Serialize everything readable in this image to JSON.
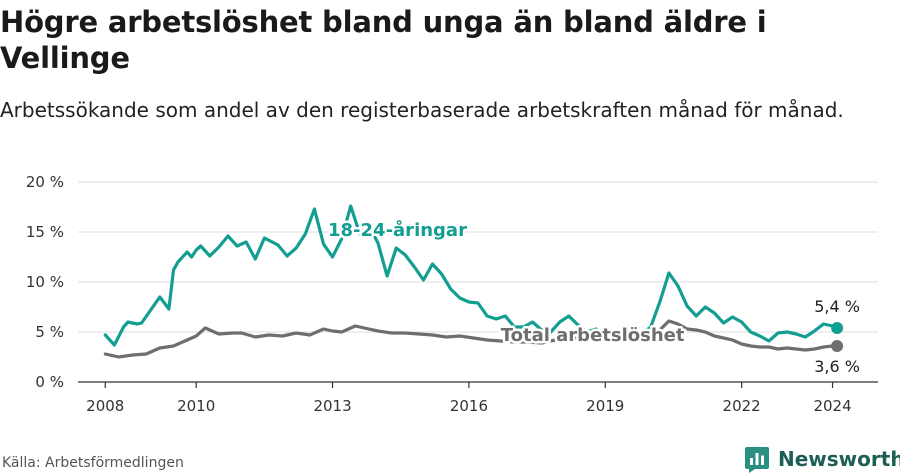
{
  "header": {
    "title": "Högre arbetslöshet bland unga än bland äldre i Vellinge",
    "subtitle": "Arbetssökande som andel av den registerbaserade arbetskraften månad för månad."
  },
  "footer": {
    "source": "Källa: Arbetsförmedlingen",
    "brand": "Newsworthy",
    "brand_icon": "newsworthy-logo-icon"
  },
  "colors": {
    "youth": "#139e92",
    "total": "#6e6e6e",
    "grid": "#dddddd",
    "axis": "#333333",
    "brand": "#1d5f55"
  },
  "chart_data": {
    "type": "line",
    "title": "Högre arbetslöshet bland unga än bland äldre i Vellinge",
    "xlabel": "",
    "ylabel": "",
    "xlim": [
      2007.4,
      2025.0
    ],
    "ylim": [
      0,
      20
    ],
    "x_ticks": [
      2008,
      2010,
      2013,
      2016,
      2019,
      2022,
      2024
    ],
    "x_tick_labels": [
      "2008",
      "2010",
      "2013",
      "2016",
      "2019",
      "2022",
      "2024"
    ],
    "y_ticks": [
      0,
      5,
      10,
      15,
      20
    ],
    "y_tick_labels": [
      "0 %",
      "5 %",
      "10 %",
      "15 %",
      "20 %"
    ],
    "grid": true,
    "series": [
      {
        "name": "18-24-åringar",
        "label": "18-24-åringar",
        "end_label": "5,4 %",
        "label_anchor_x": 2012.9,
        "label_anchor_y": 14.6,
        "x": [
          2008.0,
          2008.2,
          2008.4,
          2008.5,
          2008.7,
          2008.8,
          2009.0,
          2009.2,
          2009.4,
          2009.5,
          2009.6,
          2009.8,
          2009.9,
          2010.0,
          2010.1,
          2010.3,
          2010.5,
          2010.7,
          2010.9,
          2011.1,
          2011.3,
          2011.5,
          2011.8,
          2012.0,
          2012.2,
          2012.4,
          2012.6,
          2012.8,
          2013.0,
          2013.2,
          2013.4,
          2013.6,
          2013.8,
          2014.0,
          2014.2,
          2014.4,
          2014.6,
          2014.8,
          2015.0,
          2015.2,
          2015.4,
          2015.6,
          2015.8,
          2016.0,
          2016.2,
          2016.4,
          2016.6,
          2016.8,
          2017.0,
          2017.2,
          2017.4,
          2017.6,
          2017.8,
          2018.0,
          2018.2,
          2018.4,
          2018.6,
          2018.8,
          2019.0,
          2019.2,
          2019.4,
          2019.6,
          2019.8,
          2020.0,
          2020.2,
          2020.4,
          2020.6,
          2020.8,
          2021.0,
          2021.2,
          2021.4,
          2021.6,
          2021.8,
          2022.0,
          2022.2,
          2022.4,
          2022.6,
          2022.8,
          2023.0,
          2023.2,
          2023.4,
          2023.6,
          2023.8,
          2024.0,
          2024.1
        ],
        "values": [
          4.7,
          3.7,
          5.5,
          6.0,
          5.8,
          5.9,
          7.2,
          8.5,
          7.3,
          11.2,
          12.0,
          13.0,
          12.5,
          13.2,
          13.6,
          12.6,
          13.5,
          14.6,
          13.6,
          14.0,
          12.3,
          14.4,
          13.7,
          12.6,
          13.4,
          14.8,
          17.3,
          13.8,
          12.5,
          14.3,
          17.6,
          14.8,
          15.6,
          13.9,
          10.6,
          13.4,
          12.7,
          11.5,
          10.2,
          11.8,
          10.8,
          9.3,
          8.4,
          8.0,
          7.9,
          6.6,
          6.3,
          6.6,
          5.5,
          5.5,
          6.0,
          5.2,
          5.0,
          6.0,
          6.6,
          5.7,
          5.0,
          5.3,
          4.6,
          4.5,
          4.4,
          4.5,
          4.8,
          5.5,
          8.0,
          10.9,
          9.6,
          7.6,
          6.6,
          7.5,
          6.9,
          5.9,
          6.5,
          6.0,
          5.0,
          4.6,
          4.1,
          4.9,
          5.0,
          4.8,
          4.5,
          5.1,
          5.8,
          5.6,
          5.4
        ]
      },
      {
        "name": "Total arbetslöshet",
        "label": "Total arbetslöshet",
        "end_label": "3,6 %",
        "label_anchor_x": 2016.7,
        "label_anchor_y": 4.1,
        "x": [
          2008.0,
          2008.3,
          2008.6,
          2008.9,
          2009.2,
          2009.5,
          2009.8,
          2010.0,
          2010.2,
          2010.5,
          2010.8,
          2011.0,
          2011.3,
          2011.6,
          2011.9,
          2012.2,
          2012.5,
          2012.8,
          2013.0,
          2013.2,
          2013.5,
          2013.8,
          2014.0,
          2014.3,
          2014.6,
          2014.9,
          2015.2,
          2015.5,
          2015.8,
          2016.1,
          2016.4,
          2016.7,
          2017.0,
          2017.3,
          2017.6,
          2017.9,
          2018.2,
          2018.5,
          2018.8,
          2019.1,
          2019.4,
          2019.7,
          2020.0,
          2020.2,
          2020.4,
          2020.6,
          2020.8,
          2021.0,
          2021.2,
          2021.4,
          2021.6,
          2021.8,
          2022.0,
          2022.2,
          2022.4,
          2022.6,
          2022.8,
          2023.0,
          2023.2,
          2023.4,
          2023.6,
          2023.8,
          2024.0,
          2024.1
        ],
        "values": [
          2.8,
          2.5,
          2.7,
          2.8,
          3.4,
          3.6,
          4.2,
          4.6,
          5.4,
          4.8,
          4.9,
          4.9,
          4.5,
          4.7,
          4.6,
          4.9,
          4.7,
          5.3,
          5.1,
          5.0,
          5.6,
          5.3,
          5.1,
          4.9,
          4.9,
          4.8,
          4.7,
          4.5,
          4.6,
          4.4,
          4.2,
          4.1,
          4.0,
          4.0,
          3.9,
          4.2,
          4.3,
          4.5,
          4.4,
          4.5,
          4.6,
          4.5,
          4.6,
          5.2,
          6.1,
          5.8,
          5.3,
          5.2,
          5.0,
          4.6,
          4.4,
          4.2,
          3.8,
          3.6,
          3.5,
          3.5,
          3.3,
          3.4,
          3.3,
          3.2,
          3.3,
          3.5,
          3.6,
          3.6
        ]
      }
    ]
  }
}
